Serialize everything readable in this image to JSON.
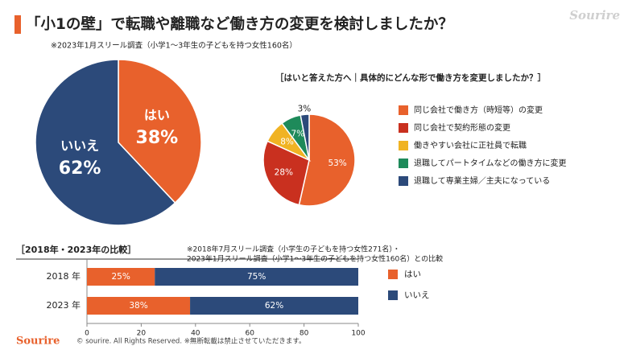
{
  "header": {
    "title": "「小1の壁」で転職や離職など働き方の変更を検討しましたか？",
    "logo": "Sourire"
  },
  "chart_data": [
    {
      "type": "pie",
      "subtitle": "※2023年1月スリール調査（小学1～3年生の子どもを持つ女性160名）",
      "categories": [
        "はい",
        "いいえ"
      ],
      "values": [
        38,
        62
      ],
      "value_labels": [
        "38%",
        "62%"
      ],
      "colors": [
        "#e8612c",
        "#2c4a7a"
      ]
    },
    {
      "type": "pie",
      "title": "［はいと答えた方へ｜具体的にどんな形で働き方を変更しましたか？］",
      "categories": [
        "同じ会社で働き方（時短等）の変更",
        "同じ会社で契約形態の変更",
        "働きやすい会社に正社員で転職",
        "退職してパートタイムなどの働き方に変更",
        "退職して専業主婦／主夫になっている"
      ],
      "values": [
        53,
        28,
        8,
        7,
        3
      ],
      "value_labels": [
        "53%",
        "28%",
        "8%",
        "7%",
        "3%"
      ],
      "colors": [
        "#e8612c",
        "#c9301f",
        "#f0b323",
        "#1e8a5a",
        "#2c4a7a"
      ],
      "legend": "right"
    },
    {
      "type": "bar",
      "orientation": "horizontal",
      "stacked": true,
      "title": "［2018年・2023年の比較］",
      "subtitle": "※2018年7月スリール調査（小学生の子どもを持つ女性271名）・",
      "subtitle2": "2023年1月スリール調査（小学1～3年生の子どもを持つ女性160名）との比較",
      "categories": [
        "2018 年",
        "2023 年"
      ],
      "series": [
        {
          "name": "はい",
          "color": "#e8612c",
          "values": [
            25,
            38
          ],
          "value_labels": [
            "25%",
            "38%"
          ]
        },
        {
          "name": "いいえ",
          "color": "#2c4a7a",
          "values": [
            75,
            62
          ],
          "value_labels": [
            "75%",
            "62%"
          ]
        }
      ],
      "xlim": [
        0,
        100
      ],
      "xticks": [
        0,
        20,
        40,
        60,
        80,
        100
      ],
      "legend": "right"
    }
  ],
  "footer": {
    "logo": "Sourire",
    "copyright": "© sourire. All Rights Reserved. ※無断転載は禁止させていただきます。"
  }
}
